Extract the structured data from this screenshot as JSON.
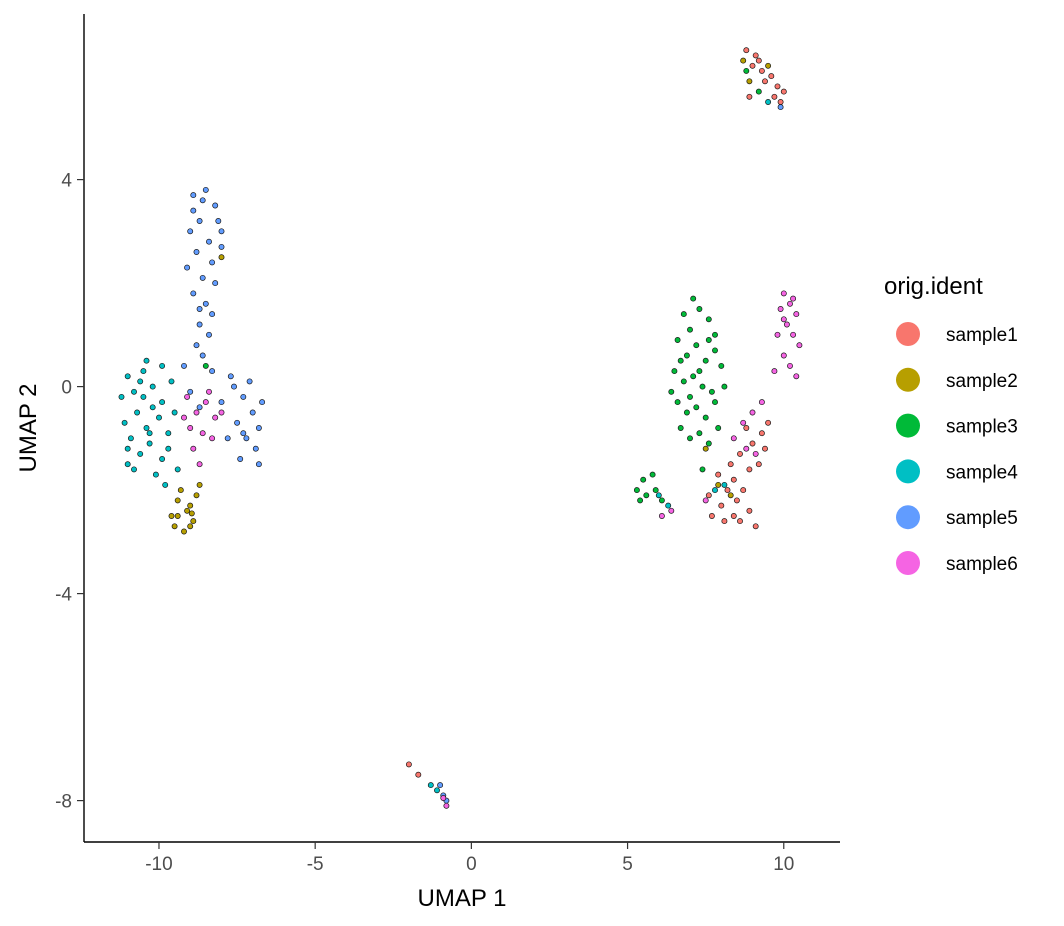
{
  "chart_data": {
    "type": "scatter",
    "title": "",
    "xlabel": "UMAP 1",
    "ylabel": "UMAP 2",
    "xlim": [
      -12.4,
      11.8
    ],
    "ylim": [
      -8.8,
      7.2
    ],
    "x_ticks": [
      -10,
      -5,
      0,
      5,
      10
    ],
    "y_ticks": [
      -8,
      -4,
      0,
      4
    ],
    "x_tick_labels": [
      "-10",
      "-5",
      "0",
      "5",
      "10"
    ],
    "y_tick_labels": [
      "-8",
      "-4",
      "0",
      "4"
    ],
    "grid": false,
    "legend": {
      "title": "orig.ident",
      "placement": "right",
      "entries": [
        {
          "name": "sample1",
          "color": "#F8766D"
        },
        {
          "name": "sample2",
          "color": "#B79F00"
        },
        {
          "name": "sample3",
          "color": "#00BA38"
        },
        {
          "name": "sample4",
          "color": "#00BFC4"
        },
        {
          "name": "sample5",
          "color": "#619CFF"
        },
        {
          "name": "sample6",
          "color": "#F564E3"
        }
      ]
    },
    "series": [
      {
        "name": "sample1",
        "color": "#F8766D",
        "points": [
          [
            9.0,
            6.2
          ],
          [
            9.1,
            6.4
          ],
          [
            8.8,
            6.5
          ],
          [
            9.3,
            6.1
          ],
          [
            9.6,
            6.0
          ],
          [
            9.8,
            5.8
          ],
          [
            10.0,
            5.7
          ],
          [
            9.4,
            5.9
          ],
          [
            9.9,
            5.5
          ],
          [
            8.9,
            5.6
          ],
          [
            9.2,
            6.3
          ],
          [
            9.7,
            5.6
          ],
          [
            8.8,
            -0.8
          ],
          [
            9.0,
            -1.1
          ],
          [
            9.3,
            -0.9
          ],
          [
            9.5,
            -0.7
          ],
          [
            8.6,
            -1.3
          ],
          [
            9.2,
            -1.5
          ],
          [
            8.9,
            -1.6
          ],
          [
            8.4,
            -1.8
          ],
          [
            8.2,
            -2.0
          ],
          [
            8.0,
            -2.3
          ],
          [
            8.4,
            -2.5
          ],
          [
            8.6,
            -2.6
          ],
          [
            8.9,
            -2.4
          ],
          [
            9.1,
            -2.7
          ],
          [
            7.7,
            -2.5
          ],
          [
            8.7,
            -2.0
          ],
          [
            7.9,
            -1.7
          ],
          [
            8.5,
            -2.2
          ],
          [
            8.3,
            -1.5
          ],
          [
            9.4,
            -1.2
          ],
          [
            8.1,
            -2.6
          ],
          [
            7.6,
            -2.1
          ],
          [
            -2.0,
            -7.3
          ],
          [
            -1.7,
            -7.5
          ]
        ]
      },
      {
        "name": "sample2",
        "color": "#B79F00",
        "points": [
          [
            -9.4,
            -2.2
          ],
          [
            -9.1,
            -2.4
          ],
          [
            -8.9,
            -2.6
          ],
          [
            -9.5,
            -2.7
          ],
          [
            -9.2,
            -2.8
          ],
          [
            -9.0,
            -2.3
          ],
          [
            -9.6,
            -2.5
          ],
          [
            -8.8,
            -2.1
          ],
          [
            -9.3,
            -2.0
          ],
          [
            -9.0,
            -2.7
          ],
          [
            -9.4,
            -2.5
          ],
          [
            -8.95,
            -2.45
          ],
          [
            8.7,
            6.3
          ],
          [
            8.9,
            5.9
          ],
          [
            9.5,
            6.2
          ],
          [
            7.9,
            -1.9
          ],
          [
            8.3,
            -2.1
          ],
          [
            7.5,
            -1.2
          ],
          [
            -8.0,
            2.5
          ],
          [
            -8.7,
            -1.9
          ]
        ]
      },
      {
        "name": "sample3",
        "color": "#00BA38",
        "points": [
          [
            6.8,
            1.4
          ],
          [
            7.0,
            1.1
          ],
          [
            7.3,
            1.5
          ],
          [
            7.6,
            1.3
          ],
          [
            7.8,
            1.0
          ],
          [
            6.6,
            0.9
          ],
          [
            6.9,
            0.6
          ],
          [
            7.2,
            0.8
          ],
          [
            7.5,
            0.5
          ],
          [
            7.8,
            0.7
          ],
          [
            8.0,
            0.4
          ],
          [
            6.5,
            0.3
          ],
          [
            6.8,
            0.1
          ],
          [
            7.1,
            0.2
          ],
          [
            7.4,
            0.0
          ],
          [
            7.7,
            -0.1
          ],
          [
            6.6,
            -0.3
          ],
          [
            6.9,
            -0.5
          ],
          [
            7.2,
            -0.4
          ],
          [
            7.5,
            -0.6
          ],
          [
            7.8,
            -0.3
          ],
          [
            6.7,
            -0.8
          ],
          [
            7.0,
            -1.0
          ],
          [
            7.3,
            -0.9
          ],
          [
            7.6,
            -1.1
          ],
          [
            7.1,
            1.7
          ],
          [
            6.4,
            -0.1
          ],
          [
            8.1,
            0.0
          ],
          [
            7.9,
            -0.8
          ],
          [
            6.7,
            0.5
          ],
          [
            7.3,
            0.3
          ],
          [
            7.6,
            0.9
          ],
          [
            7.0,
            -0.2
          ],
          [
            5.3,
            -2.0
          ],
          [
            5.5,
            -1.8
          ],
          [
            5.4,
            -2.2
          ],
          [
            5.6,
            -2.1
          ],
          [
            5.8,
            -1.7
          ],
          [
            5.9,
            -2.0
          ],
          [
            6.1,
            -2.2
          ],
          [
            8.8,
            6.1
          ],
          [
            9.2,
            5.7
          ],
          [
            7.4,
            -1.6
          ],
          [
            -8.5,
            0.4
          ]
        ]
      },
      {
        "name": "sample4",
        "color": "#00BFC4",
        "points": [
          [
            -11.0,
            0.2
          ],
          [
            -10.8,
            -0.1
          ],
          [
            -10.5,
            0.3
          ],
          [
            -10.2,
            0.0
          ],
          [
            -9.9,
            -0.3
          ],
          [
            -10.7,
            -0.5
          ],
          [
            -10.4,
            -0.8
          ],
          [
            -10.0,
            -0.6
          ],
          [
            -9.7,
            -0.9
          ],
          [
            -11.1,
            -0.7
          ],
          [
            -10.9,
            -1.0
          ],
          [
            -10.6,
            -1.3
          ],
          [
            -10.3,
            -1.1
          ],
          [
            -9.9,
            -1.4
          ],
          [
            -11.0,
            -1.5
          ],
          [
            -10.2,
            -0.4
          ],
          [
            -9.6,
            0.1
          ],
          [
            -9.9,
            0.4
          ],
          [
            -10.5,
            -0.2
          ],
          [
            -11.2,
            -0.2
          ],
          [
            -10.8,
            -1.6
          ],
          [
            -10.1,
            -1.7
          ],
          [
            -9.7,
            -1.2
          ],
          [
            -10.4,
            0.5
          ],
          [
            -9.5,
            -0.5
          ],
          [
            -9.8,
            -1.9
          ],
          [
            -10.6,
            0.1
          ],
          [
            -9.4,
            -1.6
          ],
          [
            -11.0,
            -1.2
          ],
          [
            -10.3,
            -0.9
          ],
          [
            7.8,
            -2.0
          ],
          [
            8.1,
            -1.9
          ],
          [
            6.3,
            -2.3
          ],
          [
            6.0,
            -2.1
          ],
          [
            9.5,
            5.5
          ],
          [
            -1.1,
            -7.8
          ],
          [
            -1.3,
            -7.7
          ]
        ]
      },
      {
        "name": "sample5",
        "color": "#619CFF",
        "points": [
          [
            -8.9,
            3.7
          ],
          [
            -8.5,
            3.8
          ],
          [
            -8.2,
            3.5
          ],
          [
            -8.0,
            3.0
          ],
          [
            -8.7,
            3.2
          ],
          [
            -9.0,
            3.0
          ],
          [
            -8.4,
            2.8
          ],
          [
            -8.8,
            2.6
          ],
          [
            -8.3,
            2.4
          ],
          [
            -9.1,
            2.3
          ],
          [
            -8.6,
            2.1
          ],
          [
            -8.2,
            2.0
          ],
          [
            -8.9,
            1.8
          ],
          [
            -8.5,
            1.6
          ],
          [
            -8.3,
            1.4
          ],
          [
            -8.7,
            1.2
          ],
          [
            -8.4,
            1.0
          ],
          [
            -8.8,
            0.8
          ],
          [
            -8.6,
            0.6
          ],
          [
            -8.3,
            0.3
          ],
          [
            -8.9,
            3.4
          ],
          [
            -8.1,
            3.2
          ],
          [
            -8.6,
            3.6
          ],
          [
            -8.0,
            2.7
          ],
          [
            -8.7,
            1.5
          ],
          [
            -7.6,
            0.0
          ],
          [
            -7.3,
            -0.2
          ],
          [
            -7.0,
            -0.5
          ],
          [
            -6.8,
            -0.8
          ],
          [
            -7.2,
            -1.0
          ],
          [
            -6.9,
            -1.2
          ],
          [
            -6.7,
            -0.3
          ],
          [
            -7.5,
            -0.7
          ],
          [
            -7.1,
            0.1
          ],
          [
            -8.0,
            -0.3
          ],
          [
            -7.8,
            -1.0
          ],
          [
            -7.4,
            -1.4
          ],
          [
            -6.8,
            -1.5
          ],
          [
            -7.7,
            0.2
          ],
          [
            -7.3,
            -0.9
          ],
          [
            -9.0,
            -0.1
          ],
          [
            -8.7,
            -0.4
          ],
          [
            -9.2,
            0.4
          ],
          [
            9.9,
            5.4
          ],
          [
            -0.9,
            -7.9
          ],
          [
            -0.8,
            -8.0
          ],
          [
            -1.0,
            -7.7
          ]
        ]
      },
      {
        "name": "sample6",
        "color": "#F564E3",
        "points": [
          [
            -9.1,
            -0.2
          ],
          [
            -8.8,
            -0.5
          ],
          [
            -8.5,
            -0.3
          ],
          [
            -8.2,
            -0.6
          ],
          [
            -8.6,
            -0.9
          ],
          [
            -8.9,
            -1.2
          ],
          [
            -8.3,
            -1.0
          ],
          [
            -9.0,
            -0.8
          ],
          [
            -8.4,
            -0.1
          ],
          [
            -8.0,
            -0.5
          ],
          [
            -8.7,
            -1.5
          ],
          [
            -9.2,
            -0.6
          ],
          [
            10.0,
            1.8
          ],
          [
            10.2,
            1.6
          ],
          [
            10.4,
            1.4
          ],
          [
            9.9,
            1.5
          ],
          [
            10.1,
            1.2
          ],
          [
            10.3,
            1.0
          ],
          [
            10.5,
            0.8
          ],
          [
            9.8,
            1.0
          ],
          [
            10.0,
            0.6
          ],
          [
            10.2,
            0.4
          ],
          [
            10.4,
            0.2
          ],
          [
            9.7,
            0.3
          ],
          [
            10.3,
            1.7
          ],
          [
            10.0,
            1.3
          ],
          [
            9.3,
            -0.3
          ],
          [
            9.0,
            -0.5
          ],
          [
            8.7,
            -0.7
          ],
          [
            8.4,
            -1.0
          ],
          [
            9.1,
            -1.3
          ],
          [
            8.8,
            -1.2
          ],
          [
            7.5,
            -2.2
          ],
          [
            6.4,
            -2.4
          ],
          [
            6.1,
            -2.5
          ],
          [
            -0.8,
            -8.1
          ],
          [
            -0.9,
            -7.95
          ]
        ]
      }
    ]
  }
}
